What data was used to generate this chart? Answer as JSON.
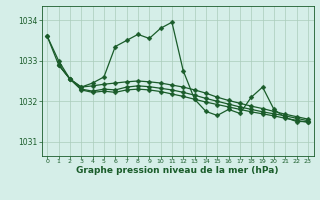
{
  "background_color": "#d5eee8",
  "grid_color": "#aaccbb",
  "line_color": "#1a5c2a",
  "xlabel": "Graphe pression niveau de la mer (hPa)",
  "xlabel_fontsize": 6.5,
  "xlim": [
    -0.5,
    23.5
  ],
  "ylim": [
    1030.65,
    1034.35
  ],
  "yticks": [
    1031,
    1032,
    1033,
    1034
  ],
  "xticks": [
    0,
    1,
    2,
    3,
    4,
    5,
    6,
    7,
    8,
    9,
    10,
    11,
    12,
    13,
    14,
    15,
    16,
    17,
    18,
    19,
    20,
    21,
    22,
    23
  ],
  "s1_x": [
    0,
    1,
    2,
    3,
    4,
    5,
    6,
    7,
    8,
    9,
    10,
    11,
    12,
    13,
    14,
    15,
    16,
    17,
    18,
    19,
    20,
    21,
    22,
    23
  ],
  "s1_y": [
    1033.6,
    1032.9,
    1032.55,
    1032.35,
    1032.45,
    1032.6,
    1033.35,
    1033.5,
    1033.65,
    1033.55,
    1033.8,
    1033.95,
    1032.75,
    1032.05,
    1031.75,
    1031.65,
    1031.8,
    1031.7,
    1032.1,
    1032.35,
    1031.8,
    1031.6,
    1031.5,
    1031.5
  ],
  "s2_x": [
    0,
    1,
    2,
    3,
    4,
    5,
    6,
    7,
    8,
    9,
    10,
    11,
    12,
    13,
    14,
    15,
    16,
    17,
    18,
    19,
    20,
    21,
    22,
    23
  ],
  "s2_y": [
    1033.6,
    1033.0,
    1032.55,
    1032.35,
    1032.38,
    1032.42,
    1032.45,
    1032.48,
    1032.5,
    1032.48,
    1032.45,
    1032.4,
    1032.35,
    1032.28,
    1032.2,
    1032.1,
    1032.02,
    1031.95,
    1031.88,
    1031.82,
    1031.75,
    1031.68,
    1031.62,
    1031.56
  ],
  "s3_x": [
    1,
    2,
    3,
    4,
    5,
    6,
    7,
    8,
    9,
    10,
    11,
    12,
    13,
    14,
    15,
    16,
    17,
    18,
    19,
    20,
    21,
    22,
    23
  ],
  "s3_y": [
    1032.9,
    1032.55,
    1032.3,
    1032.25,
    1032.3,
    1032.28,
    1032.35,
    1032.38,
    1032.36,
    1032.32,
    1032.28,
    1032.22,
    1032.15,
    1032.07,
    1032.0,
    1031.93,
    1031.86,
    1031.8,
    1031.74,
    1031.69,
    1031.64,
    1031.58,
    1031.52
  ],
  "s4_x": [
    1,
    2,
    3,
    4,
    5,
    6,
    7,
    8,
    9,
    10,
    11,
    12,
    13,
    14,
    15,
    16,
    17,
    18,
    19,
    20,
    21,
    22,
    23
  ],
  "s4_y": [
    1032.9,
    1032.55,
    1032.28,
    1032.22,
    1032.25,
    1032.22,
    1032.28,
    1032.3,
    1032.28,
    1032.24,
    1032.18,
    1032.12,
    1032.05,
    1031.98,
    1031.92,
    1031.86,
    1031.8,
    1031.74,
    1031.69,
    1031.64,
    1031.58,
    1031.53,
    1031.48
  ]
}
